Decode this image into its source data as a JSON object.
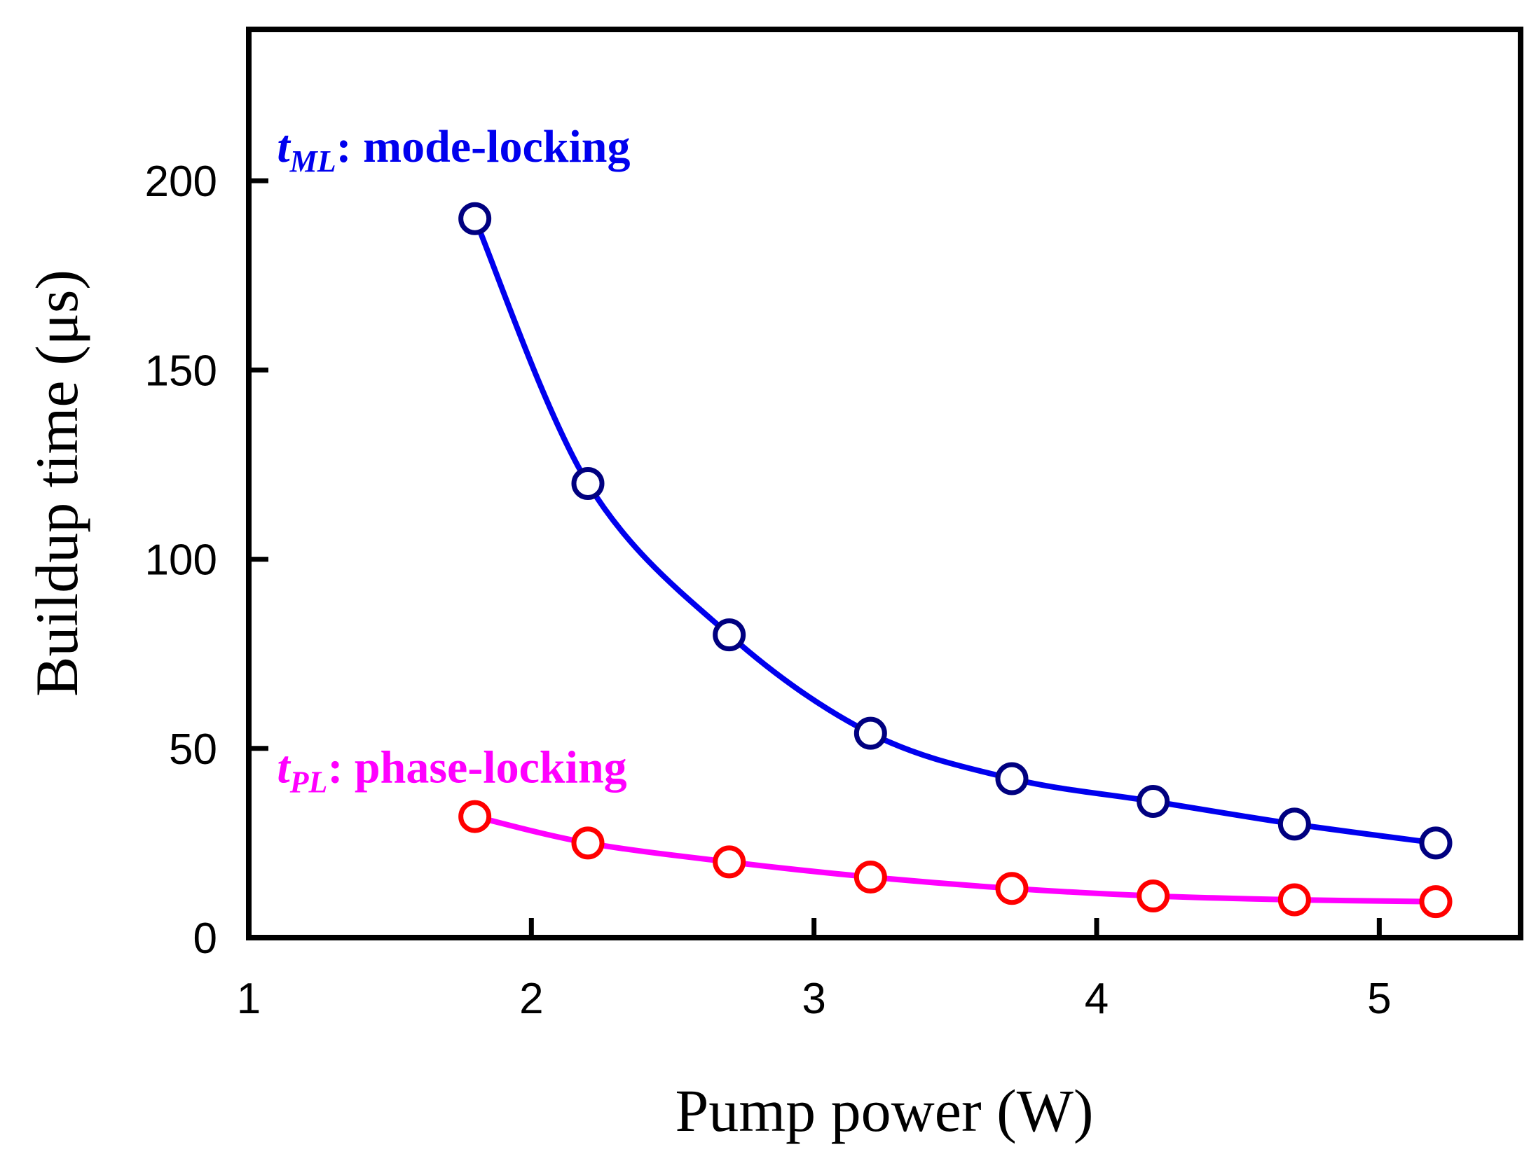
{
  "chart_data": {
    "type": "line",
    "title": "",
    "xlabel": "Pump power (W)",
    "ylabel": "Buildup time (μs)",
    "xlim": [
      1,
      5.5
    ],
    "ylim": [
      0,
      240
    ],
    "xticks": [
      1,
      2,
      3,
      4,
      5
    ],
    "yticks": [
      0,
      50,
      100,
      150,
      200
    ],
    "grid": false,
    "series": [
      {
        "key": "ML",
        "line_color": "#0000ee",
        "marker_color": "#000080",
        "x": [
          1.8,
          2.2,
          2.7,
          3.2,
          3.7,
          4.2,
          4.7,
          5.2
        ],
        "y": [
          190,
          120,
          80,
          54,
          42,
          36,
          30,
          25
        ]
      },
      {
        "key": "PL",
        "line_color": "#ff00ff",
        "marker_color": "#ff0000",
        "x": [
          1.8,
          2.2,
          2.7,
          3.2,
          3.7,
          4.2,
          4.7,
          5.2
        ],
        "y": [
          32,
          25,
          20,
          16,
          13,
          11,
          10,
          9.5
        ]
      }
    ],
    "annotations": [
      {
        "key": "ML",
        "symbol": "t",
        "subscript": "ML",
        "separator": ":",
        "text": "mode-locking",
        "color": "#0000ee",
        "anchor_x": 1.1,
        "anchor_y": 205
      },
      {
        "key": "PL",
        "symbol": "t",
        "subscript": "PL",
        "separator": ":",
        "text": "phase-locking",
        "color": "#ff00ff",
        "anchor_x": 1.1,
        "anchor_y": 41
      }
    ]
  }
}
